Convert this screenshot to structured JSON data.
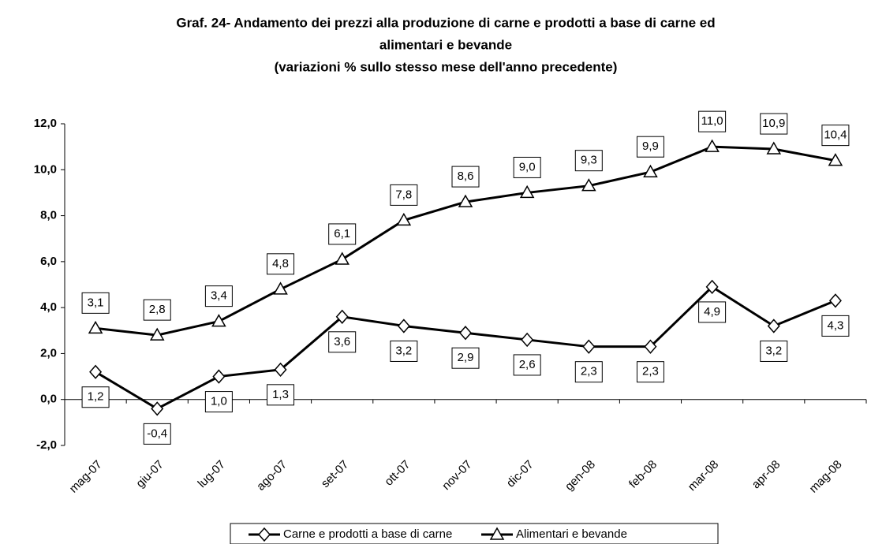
{
  "chart_data": {
    "type": "line",
    "title": [
      "Graf. 24- Andamento dei prezzi alla produzione di carne e prodotti a base di carne ed",
      "alimentari e bevande"
    ],
    "subtitle": "(variazioni % sullo stesso mese dell'anno precedente)",
    "categories": [
      "mag-07",
      "giu-07",
      "lug-07",
      "ago-07",
      "set-07",
      "ott-07",
      "nov-07",
      "dic-07",
      "gen-08",
      "feb-08",
      "mar-08",
      "apr-08",
      "mag-08"
    ],
    "series": [
      {
        "name": "Carne e prodotti a base di carne",
        "color": "#000000",
        "marker": "diamond",
        "label_position": "below",
        "values": [
          1.2,
          -0.4,
          1.0,
          1.3,
          3.6,
          3.2,
          2.9,
          2.6,
          2.3,
          2.3,
          4.9,
          3.2,
          4.3
        ],
        "value_labels": [
          "1,2",
          "-0,4",
          "1,0",
          "1,3",
          "3,6",
          "3,2",
          "2,9",
          "2,6",
          "2,3",
          "2,3",
          "4,9",
          "3,2",
          "4,3"
        ]
      },
      {
        "name": "Alimentari e bevande",
        "color": "#000000",
        "marker": "triangle",
        "label_position": "above",
        "values": [
          3.1,
          2.8,
          3.4,
          4.8,
          6.1,
          7.8,
          8.6,
          9.0,
          9.3,
          9.9,
          11.0,
          10.9,
          10.4
        ],
        "value_labels": [
          "3,1",
          "2,8",
          "3,4",
          "4,8",
          "6,1",
          "7,8",
          "8,6",
          "9,0",
          "9,3",
          "9,9",
          "11,0",
          "10,9",
          "10,4"
        ]
      }
    ],
    "ylim": [
      -2,
      12
    ],
    "yticks": [
      {
        "value": -2,
        "label": "-2,0"
      },
      {
        "value": 0,
        "label": "0,0"
      },
      {
        "value": 2,
        "label": "2,0"
      },
      {
        "value": 4,
        "label": "4,0"
      },
      {
        "value": 6,
        "label": "6,0"
      },
      {
        "value": 8,
        "label": "8,0"
      },
      {
        "value": 10,
        "label": "10,0"
      },
      {
        "value": 12,
        "label": "12,0"
      }
    ],
    "grid": false,
    "legend": "bottom"
  }
}
